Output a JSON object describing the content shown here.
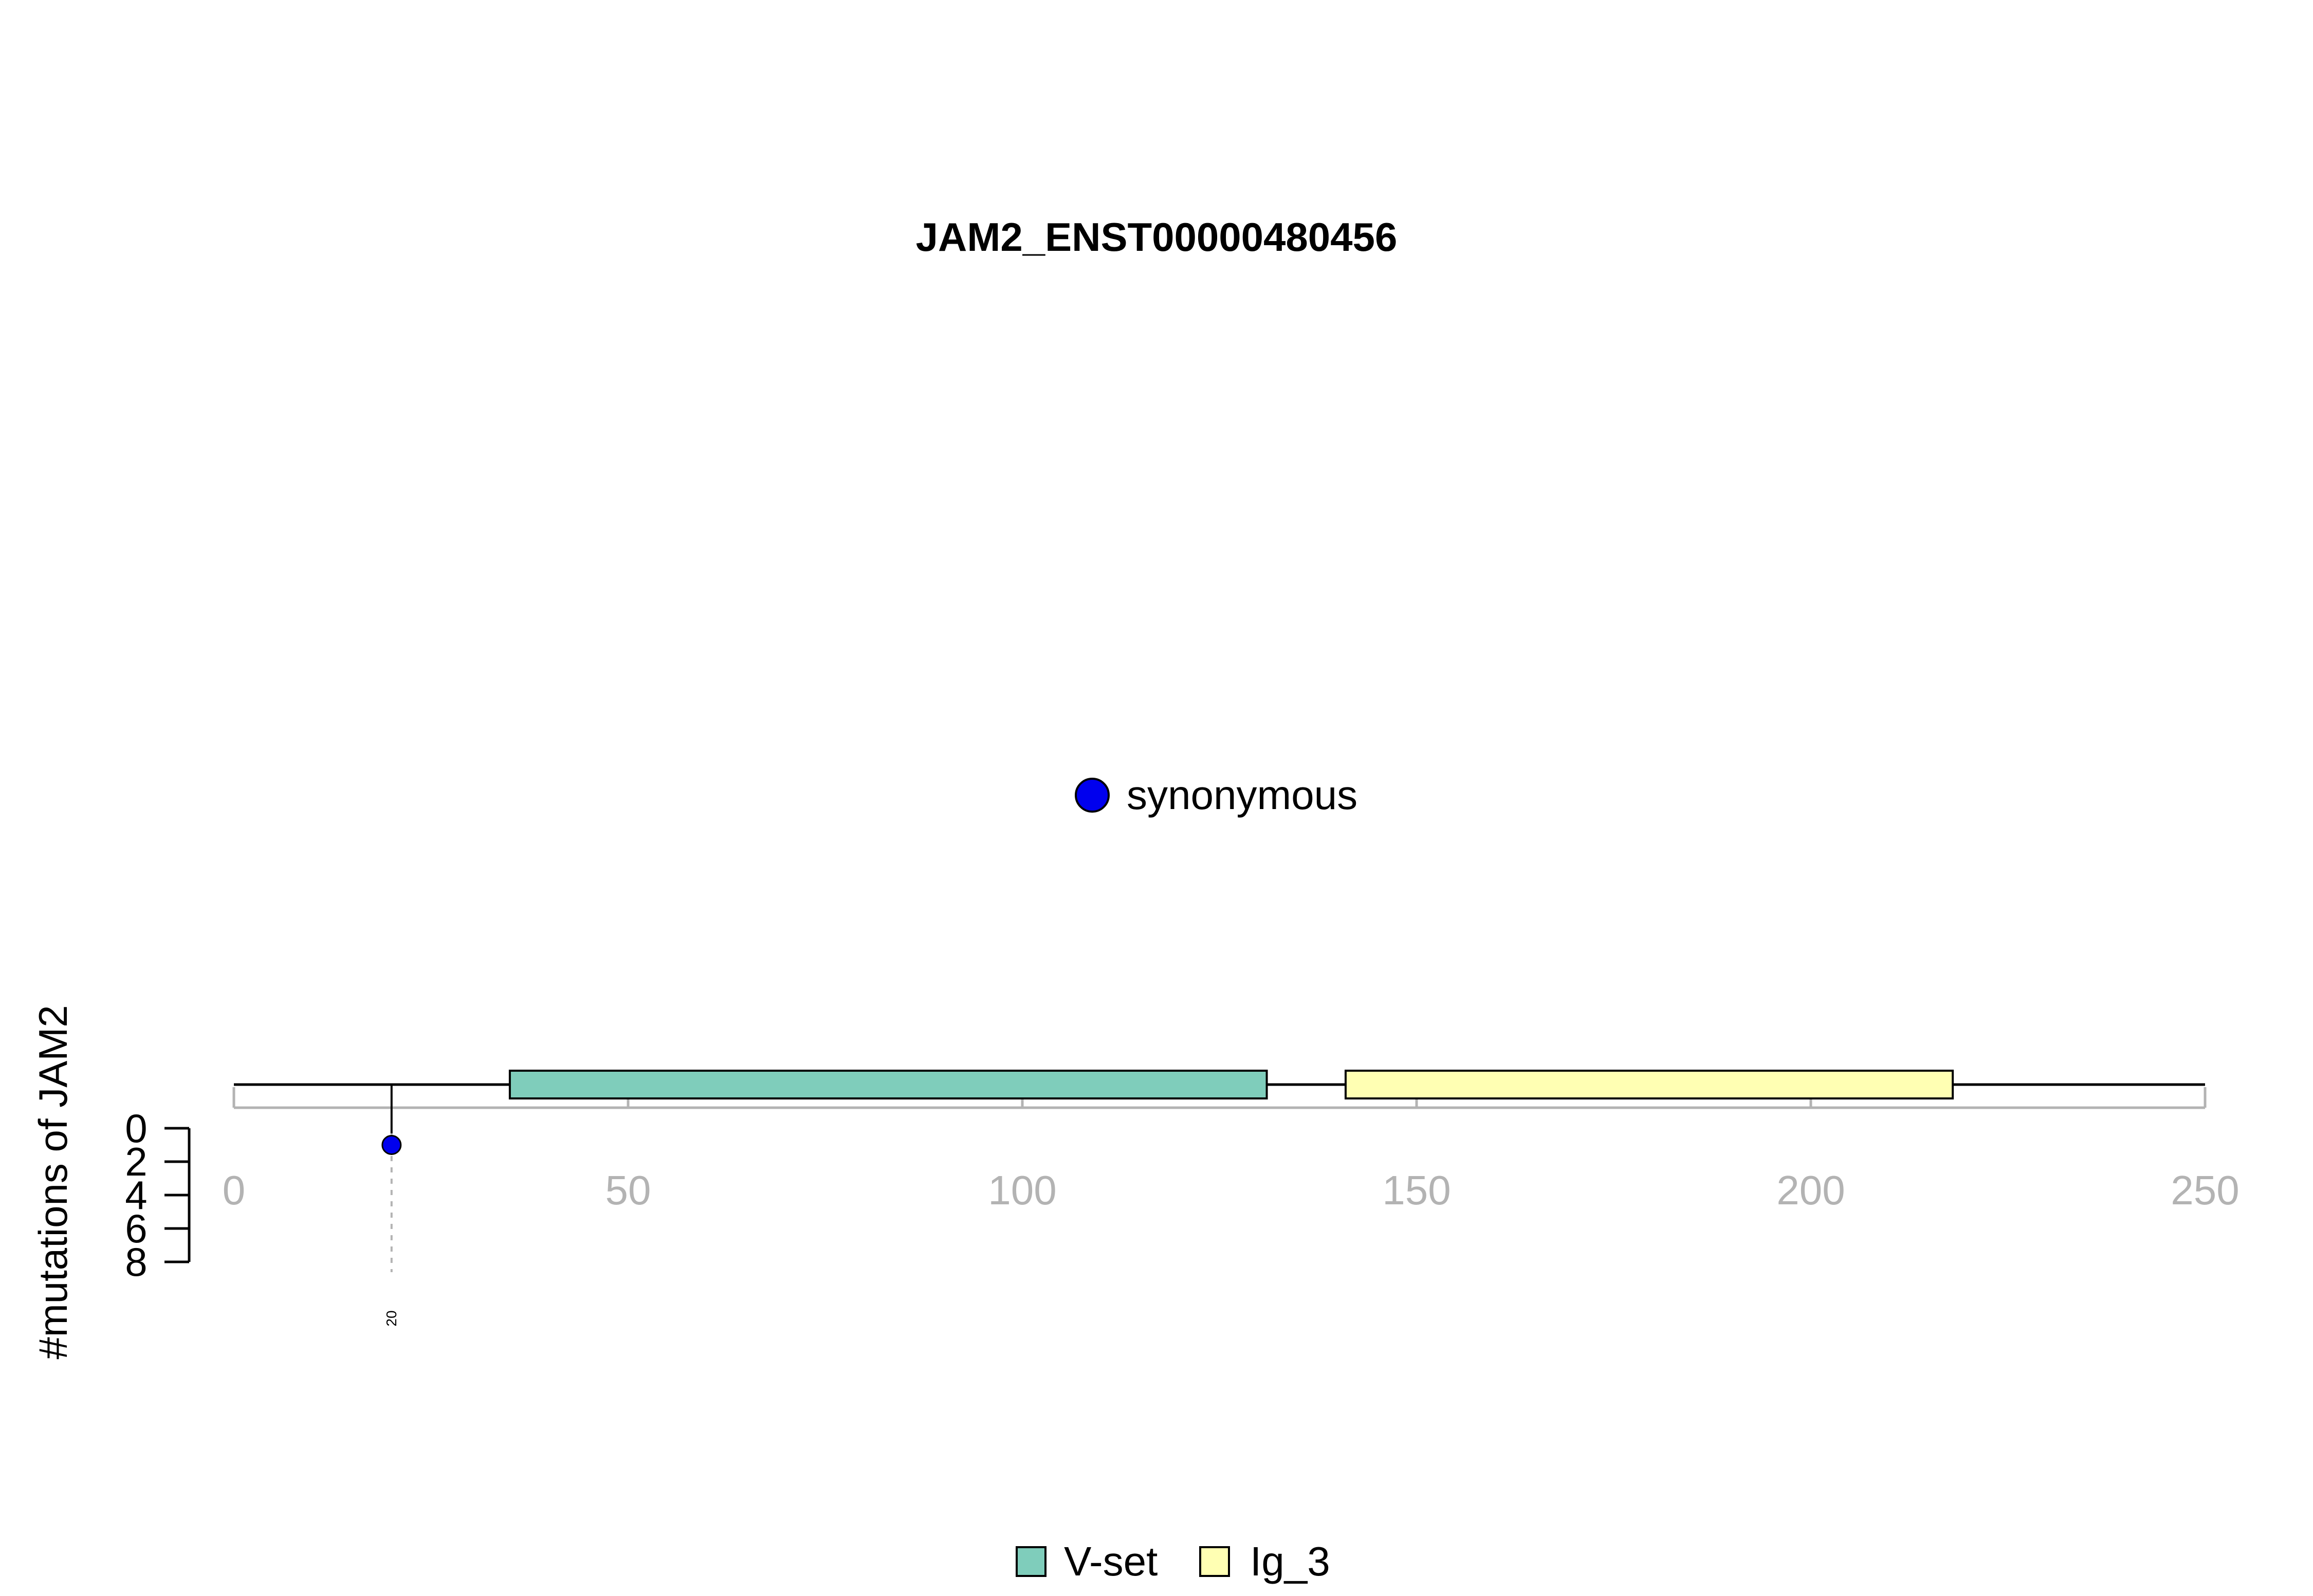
{
  "chart_data": {
    "type": "lollipop",
    "title": "JAM2_ENST00000480456",
    "xlim": [
      0,
      250
    ],
    "x_ticks": [
      0,
      50,
      100,
      150,
      200,
      250
    ],
    "ylabel": "#mutations of JAM2",
    "ylim": [
      0,
      8
    ],
    "y_ticks": [
      0,
      2,
      4,
      6,
      8
    ],
    "protein_length": 250,
    "domains": [
      {
        "name": "V-set",
        "start": 35,
        "end": 131,
        "color": "#7fcdbb"
      },
      {
        "name": "Ig_3",
        "start": 141,
        "end": 218,
        "color": "#ffffb3"
      }
    ],
    "mutations": [
      {
        "position": 20,
        "count": 1,
        "type": "synonymous",
        "label": "20"
      }
    ],
    "mutation_legend": [
      {
        "label": "synonymous",
        "color": "#0000ee"
      }
    ],
    "domain_legend": [
      {
        "label": "V-set",
        "color": "#7fcdbb"
      },
      {
        "label": "Ig_3",
        "color": "#ffffb3"
      }
    ],
    "colors": {
      "axis": "#b3b3b3",
      "tick_label": "#b3b3b3",
      "backbone": "#000000",
      "guide": "#b3b3b3"
    }
  }
}
